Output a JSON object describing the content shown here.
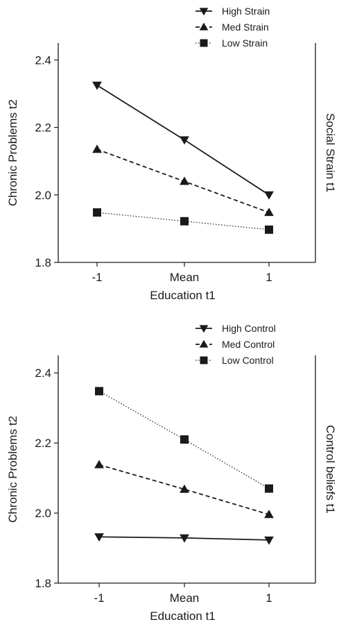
{
  "chart_data": [
    {
      "type": "line",
      "categories": [
        "-1",
        "Mean",
        "1"
      ],
      "xlabel": "Education t1",
      "ylabel": "Chronic Problems t2",
      "right_label": "Social Strain t1",
      "ylim": [
        1.8,
        2.45
      ],
      "yticks": [
        "1.8",
        "2.0",
        "2.2",
        "2.4"
      ],
      "ytick_values": [
        1.8,
        2.0,
        2.2,
        2.4
      ],
      "grid": false,
      "legend_position": "top-right",
      "series": [
        {
          "name": "High Strain",
          "values": [
            2.325,
            2.163,
            2.0
          ],
          "marker": "triangle-down",
          "line": "solid"
        },
        {
          "name": "Med Strain",
          "values": [
            2.135,
            2.04,
            1.948
          ],
          "marker": "triangle-up",
          "line": "dashed"
        },
        {
          "name": "Low Strain",
          "values": [
            1.948,
            1.922,
            1.897
          ],
          "marker": "square",
          "line": "dotted"
        }
      ]
    },
    {
      "type": "line",
      "categories": [
        "-1",
        "Mean",
        "1"
      ],
      "xlabel": "Education t1",
      "ylabel": "Chronic Problems t2",
      "right_label": "Control beliefs t1",
      "ylim": [
        1.8,
        2.45
      ],
      "yticks": [
        "1.8",
        "2.0",
        "2.2",
        "2.4"
      ],
      "ytick_values": [
        1.8,
        2.0,
        2.2,
        2.4
      ],
      "grid": false,
      "legend_position": "top-right",
      "series": [
        {
          "name": "High Control",
          "values": [
            1.932,
            1.929,
            1.923
          ],
          "marker": "triangle-down",
          "line": "solid"
        },
        {
          "name": "Med Control",
          "values": [
            2.138,
            2.068,
            1.996
          ],
          "marker": "triangle-up",
          "line": "dashed"
        },
        {
          "name": "Low Control",
          "values": [
            2.348,
            2.21,
            2.07
          ],
          "marker": "square",
          "line": "dotted"
        }
      ]
    }
  ]
}
